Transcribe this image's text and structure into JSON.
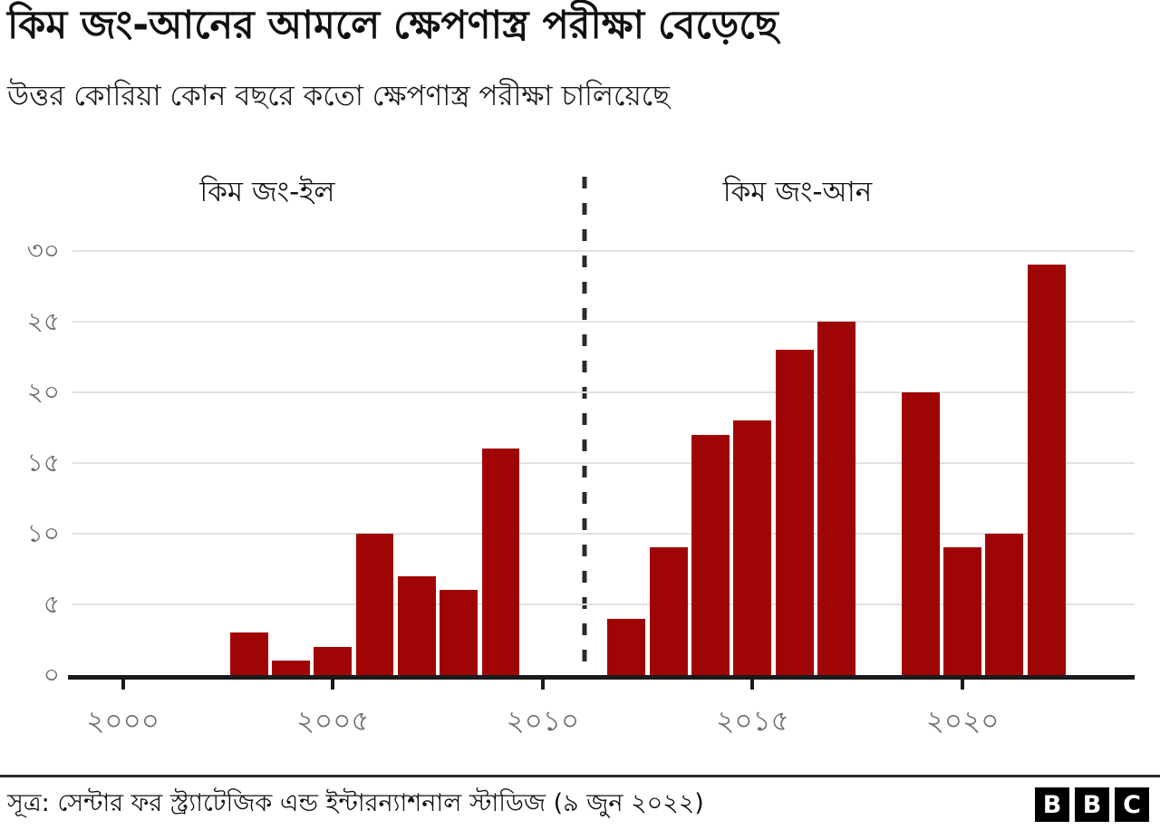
{
  "chart_data": {
    "type": "bar",
    "title": "কিম জং-আনের আমলে ক্ষেপণাস্ত্র পরীক্ষা বেড়েছে",
    "subtitle": "উত্তর কোরিয়া কোন বছরে কতো ক্ষেপণাস্ত্র পরীক্ষা চালিয়েছে",
    "xlabel": "",
    "ylabel": "",
    "bar_color": "#a00505",
    "grid": true,
    "x_range": [
      1998.8,
      2024.1
    ],
    "ylim": [
      0,
      31.7
    ],
    "sections": [
      {
        "label": "কিম জং-ইল",
        "center_pct": 18.34
      },
      {
        "label": "কিম জং-আন",
        "center_pct": 68.26
      }
    ],
    "divider_year": 2011,
    "yticks": [
      {
        "value": 0,
        "label": "০"
      },
      {
        "value": 5,
        "label": "৫"
      },
      {
        "value": 10,
        "label": "১০"
      },
      {
        "value": 15,
        "label": "১৫"
      },
      {
        "value": 20,
        "label": "২০"
      },
      {
        "value": 25,
        "label": "২৫"
      },
      {
        "value": 30,
        "label": "৩০"
      }
    ],
    "xticks": [
      {
        "value": 2000,
        "label": "২০০০"
      },
      {
        "value": 2005,
        "label": "২০০৫"
      },
      {
        "value": 2010,
        "label": "২০১০"
      },
      {
        "value": 2015,
        "label": "২০১৫"
      },
      {
        "value": 2020,
        "label": "২০২০"
      }
    ],
    "bars": [
      {
        "year": 2003,
        "value": 3
      },
      {
        "year": 2004,
        "value": 1
      },
      {
        "year": 2005,
        "value": 2
      },
      {
        "year": 2006,
        "value": 10
      },
      {
        "year": 2007,
        "value": 7
      },
      {
        "year": 2008,
        "value": 6
      },
      {
        "year": 2009,
        "value": 16
      },
      {
        "year": 2012,
        "value": 4
      },
      {
        "year": 2013,
        "value": 9
      },
      {
        "year": 2014,
        "value": 17
      },
      {
        "year": 2015,
        "value": 18
      },
      {
        "year": 2016,
        "value": 23
      },
      {
        "year": 2017,
        "value": 25
      },
      {
        "year": 2019,
        "value": 20
      },
      {
        "year": 2020,
        "value": 9
      },
      {
        "year": 2021,
        "value": 10
      },
      {
        "year": 2022,
        "value": 29
      }
    ]
  },
  "footer": {
    "source": "সূত্র: সেন্টার ফর স্ট্র্যাটেজিক এন্ড ইন্টারন্যাশনাল স্টাডিজ (৯ জুন ২০২২)",
    "logo_letters": [
      "B",
      "B",
      "C"
    ]
  }
}
